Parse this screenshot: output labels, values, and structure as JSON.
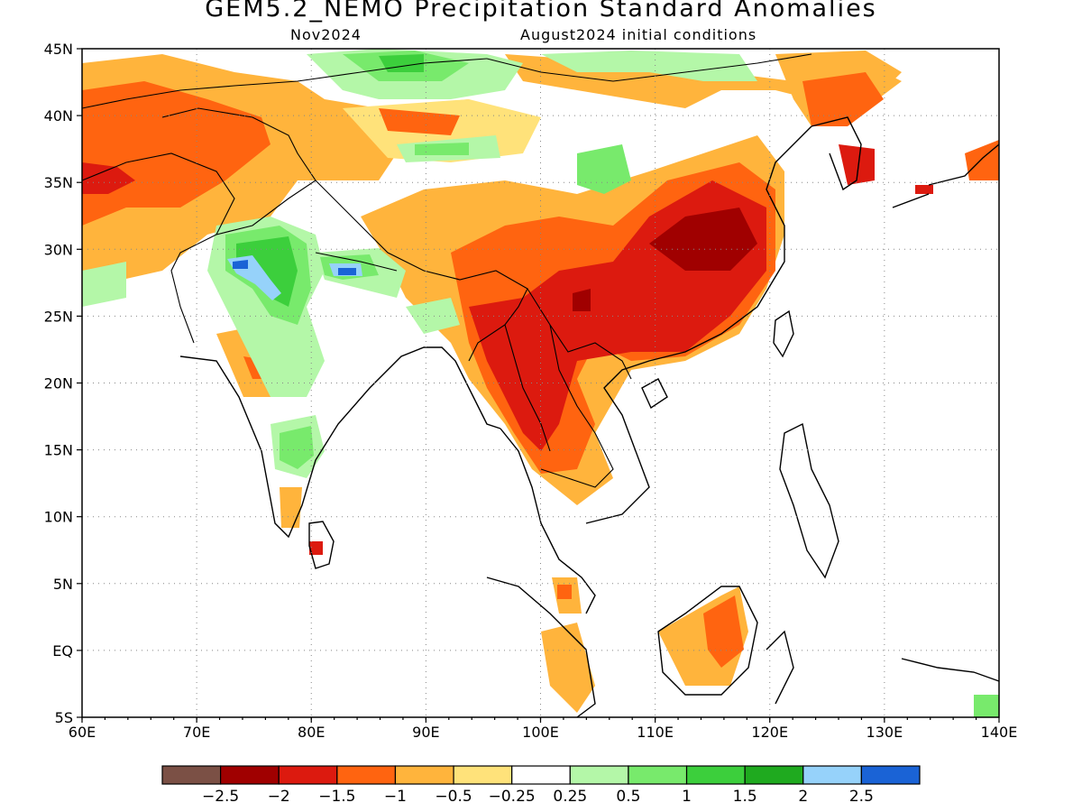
{
  "title": "GEM5.2_NEMO Precipitation Standard Anomalies",
  "subtitle_left": "Nov2024",
  "subtitle_right": "August2024 initial conditions",
  "lat_labels": [
    "45N",
    "40N",
    "35N",
    "30N",
    "25N",
    "20N",
    "15N",
    "10N",
    "5N",
    "EQ",
    "5S"
  ],
  "lon_labels": [
    "60E",
    "70E",
    "80E",
    "90E",
    "100E",
    "110E",
    "120E",
    "130E",
    "140E"
  ],
  "colorbar": {
    "colors": [
      "#7b5045",
      "#a00000",
      "#dc1a0f",
      "#ff6410",
      "#ffb43c",
      "#ffe27a",
      "#ffffff",
      "#b4f7a8",
      "#78ea6c",
      "#3ccf3c",
      "#1faa1f",
      "#96d2fa",
      "#1a63d6"
    ],
    "labels": [
      "−2.5",
      "−2",
      "−1.5",
      "−1",
      "−0.5",
      "−0.25",
      "0.25",
      "0.5",
      "1",
      "1.5",
      "2",
      "2.5"
    ]
  }
}
